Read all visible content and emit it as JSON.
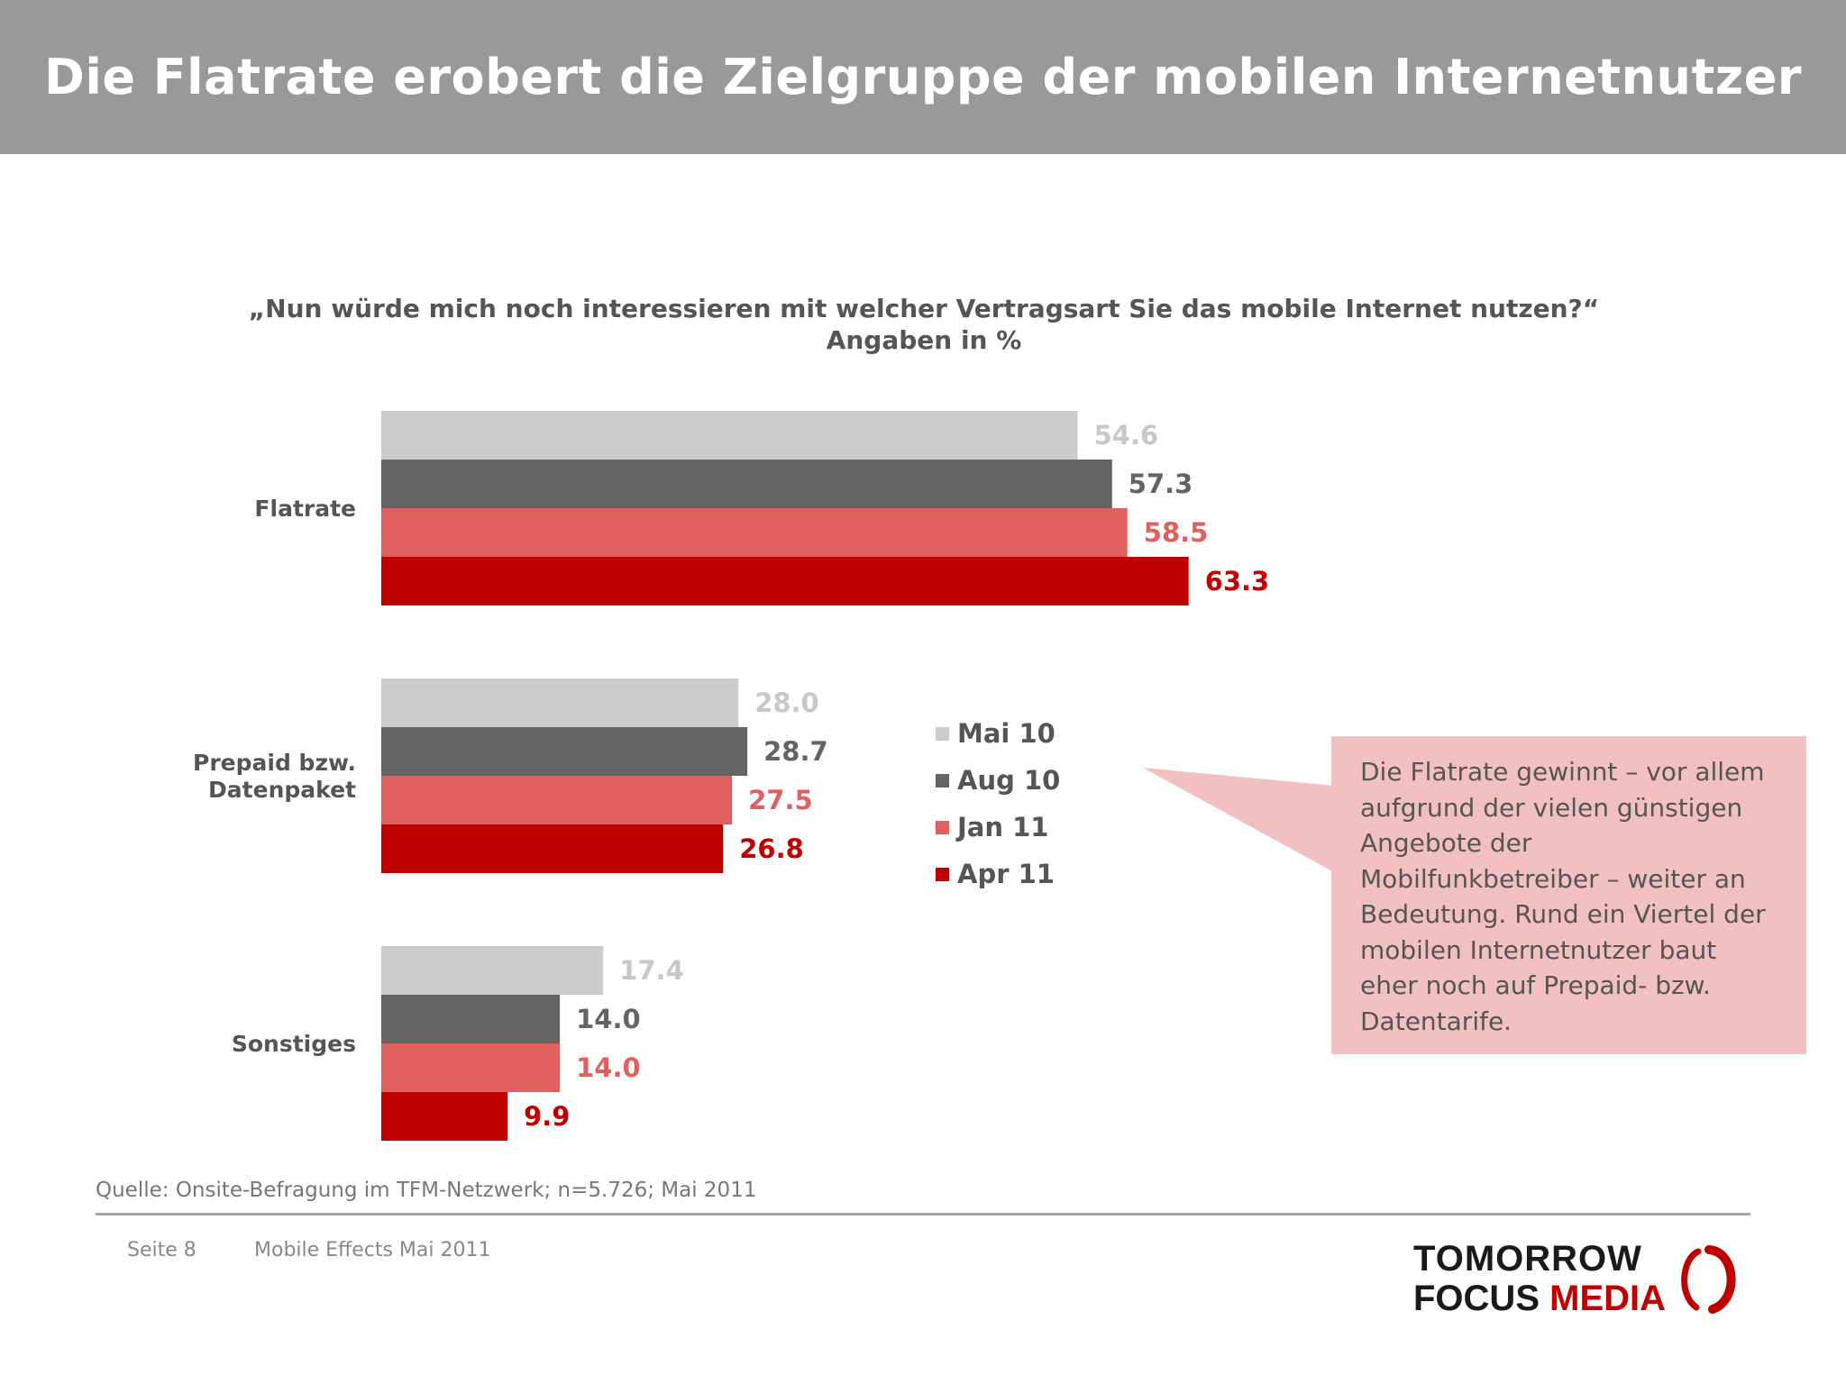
{
  "header": {
    "title": "Die Flatrate erobert die Zielgruppe der mobilen Internetnutzer"
  },
  "question": {
    "line1": "„Nun würde mich noch interessieren mit welcher Vertragsart Sie das mobile Internet nutzen?“",
    "line2": "Angaben in %"
  },
  "colors": {
    "mai10": "#cccccc",
    "aug10": "#646464",
    "jan11": "#e06060",
    "apr11": "#c00000",
    "mai10_label": "#c8c8c8"
  },
  "chart_data": {
    "type": "bar",
    "orientation": "horizontal",
    "categories": [
      "Flatrate",
      "Prepaid bzw. Datenpaket",
      "Sonstiges"
    ],
    "category_lines": [
      [
        "Flatrate"
      ],
      [
        "Prepaid bzw.",
        "Datenpaket"
      ],
      [
        "Sonstiges"
      ]
    ],
    "series": [
      {
        "name": "Mai 10",
        "values": [
          54.6,
          28.0,
          17.4
        ]
      },
      {
        "name": "Aug 10",
        "values": [
          57.3,
          28.7,
          14.0
        ]
      },
      {
        "name": "Jan 11",
        "values": [
          58.5,
          27.5,
          14.0
        ]
      },
      {
        "name": "Apr 11",
        "values": [
          63.3,
          26.8,
          9.9
        ]
      }
    ],
    "value_labels": [
      [
        "54.6",
        "28.0",
        "17.4"
      ],
      [
        "57.3",
        "28.7",
        "14.0"
      ],
      [
        "58.5",
        "27.5",
        "14.0"
      ],
      [
        "63.3",
        "26.8",
        "9.9"
      ]
    ],
    "xlim": [
      0,
      70
    ],
    "grid": false,
    "legend_position": "center-right"
  },
  "legend": [
    {
      "label": "Mai 10"
    },
    {
      "label": "Aug 10"
    },
    {
      "label": "Jan 11"
    },
    {
      "label": "Apr 11"
    }
  ],
  "callout": {
    "text": "Die Flatrate gewinnt – vor allem aufgrund der vielen günstigen Angebote der Mobilfunkbetreiber – weiter an Bedeutung. Rund ein Viertel der mobilen Internetnutzer baut eher noch auf Prepaid- bzw. Datentarife.",
    "lines": [
      "Die Flatrate gewinnt – vor allem",
      "aufgrund der vielen günstigen",
      "Angebote der",
      "Mobilfunkbetreiber – weiter an",
      "Bedeutung. Rund ein Viertel der",
      "mobilen Internetnutzer baut",
      "eher noch auf Prepaid- bzw.",
      "Datentarife."
    ]
  },
  "source": "Quelle: Onsite-Befragung im TFM-Netzwerk; n=5.726; Mai 2011",
  "footer": {
    "page": "Seite 8",
    "document": "Mobile Effects Mai 2011"
  },
  "logo": {
    "line1": "TOMORROW",
    "focus": "FOCUS",
    "media": "MEDIA"
  }
}
